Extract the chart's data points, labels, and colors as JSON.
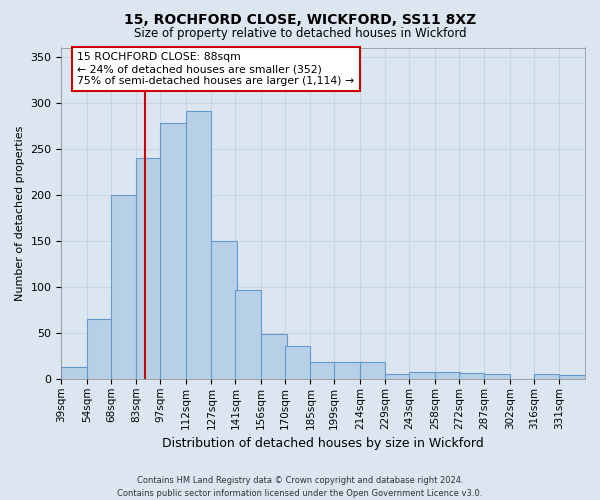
{
  "title1": "15, ROCHFORD CLOSE, WICKFORD, SS11 8XZ",
  "title2": "Size of property relative to detached houses in Wickford",
  "xlabel": "Distribution of detached houses by size in Wickford",
  "ylabel": "Number of detached properties",
  "categories": [
    "39sqm",
    "54sqm",
    "68sqm",
    "83sqm",
    "97sqm",
    "112sqm",
    "127sqm",
    "141sqm",
    "156sqm",
    "170sqm",
    "185sqm",
    "199sqm",
    "214sqm",
    "229sqm",
    "243sqm",
    "258sqm",
    "272sqm",
    "287sqm",
    "302sqm",
    "316sqm",
    "331sqm"
  ],
  "values": [
    13,
    65,
    200,
    240,
    278,
    291,
    150,
    97,
    49,
    36,
    18,
    18,
    18,
    5,
    8,
    8,
    6,
    5,
    0,
    5,
    4
  ],
  "bar_color": "#b8cfe8",
  "bar_edge_color": "#6699cc",
  "annotation_box_text": "15 ROCHFORD CLOSE: 88sqm\n← 24% of detached houses are smaller (352)\n75% of semi-detached houses are larger (1,114) →",
  "annotation_box_color": "#ffffff",
  "annotation_box_edge_color": "#cc0000",
  "red_line_x": 88,
  "red_line_color": "#cc0000",
  "grid_color": "#c8d4e8",
  "background_color": "#dce6f0",
  "ylim": [
    0,
    360
  ],
  "yticks": [
    0,
    50,
    100,
    150,
    200,
    250,
    300,
    350
  ],
  "bin_starts": [
    39,
    54,
    68,
    83,
    97,
    112,
    127,
    141,
    156,
    170,
    185,
    199,
    214,
    229,
    243,
    258,
    272,
    287,
    302,
    316,
    331
  ],
  "bin_width": 15,
  "footnote": "Contains HM Land Registry data © Crown copyright and database right 2024.\nContains public sector information licensed under the Open Government Licence v3.0."
}
